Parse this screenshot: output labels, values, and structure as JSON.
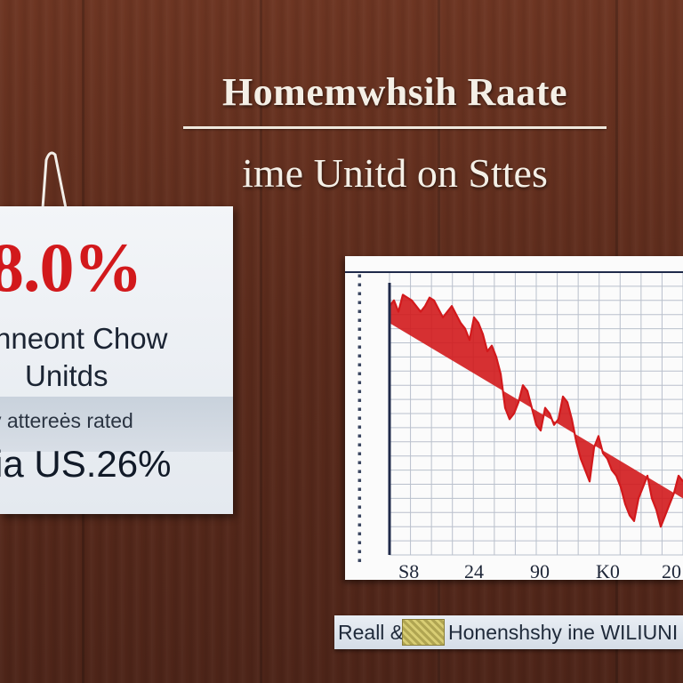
{
  "header": {
    "title_line1": "Homemwhsih Raate",
    "title_line2": "ime Unitd on Sttes"
  },
  "card": {
    "big_value": "8.0%",
    "line1": "nneont Chow",
    "line2": "Unitds",
    "band_text": "y attereės rated",
    "value2": "ia US.26%"
  },
  "caption": {
    "part1": "Reall &",
    "part2": "Honenshshy ine WILIUNI"
  },
  "colors": {
    "accent_red": "#d2191c",
    "axis_navy": "#1f2a4a",
    "grid": "#b9c0cc"
  },
  "chart_data": {
    "type": "line",
    "title": "",
    "xlabel": "",
    "ylabel": "",
    "x_tick_labels": [
      "S8",
      "24",
      "90",
      "K0",
      "20"
    ],
    "ylim": [
      0,
      100
    ],
    "grid": true,
    "series": [
      {
        "color": "#d2191c",
        "fill": true,
        "x": [
          0,
          1.5,
          3,
          4.5,
          6,
          7.5,
          9,
          10.5,
          12,
          13.5,
          15,
          16.5,
          18,
          19.5,
          21,
          22.5,
          24,
          25.5,
          27,
          28.5,
          30,
          31.5,
          33,
          34.5,
          36,
          37.5,
          39,
          40.5,
          42,
          43.5,
          45,
          46.5,
          48,
          49.5,
          51,
          52.5,
          54,
          55.5,
          57,
          58.5,
          60,
          61.5,
          63,
          64.5,
          66,
          67.5,
          69,
          70.5,
          72,
          73.5,
          75,
          76.5,
          78,
          79.5,
          81,
          82.5,
          84,
          85.5,
          87,
          88.5,
          90,
          91.5,
          93,
          94.5,
          96,
          97.5,
          99
        ],
        "y": [
          88,
          90,
          86,
          92,
          91,
          90,
          88,
          86,
          88,
          91,
          90,
          87,
          84,
          86,
          88,
          85,
          82,
          80,
          76,
          84,
          82,
          78,
          72,
          74,
          70,
          64,
          52,
          48,
          50,
          54,
          60,
          58,
          52,
          46,
          44,
          52,
          50,
          46,
          48,
          56,
          54,
          48,
          40,
          34,
          30,
          26,
          38,
          42,
          36,
          34,
          30,
          28,
          24,
          18,
          14,
          12,
          20,
          24,
          28,
          20,
          16,
          10,
          14,
          18,
          22,
          28,
          26
        ]
      }
    ]
  }
}
